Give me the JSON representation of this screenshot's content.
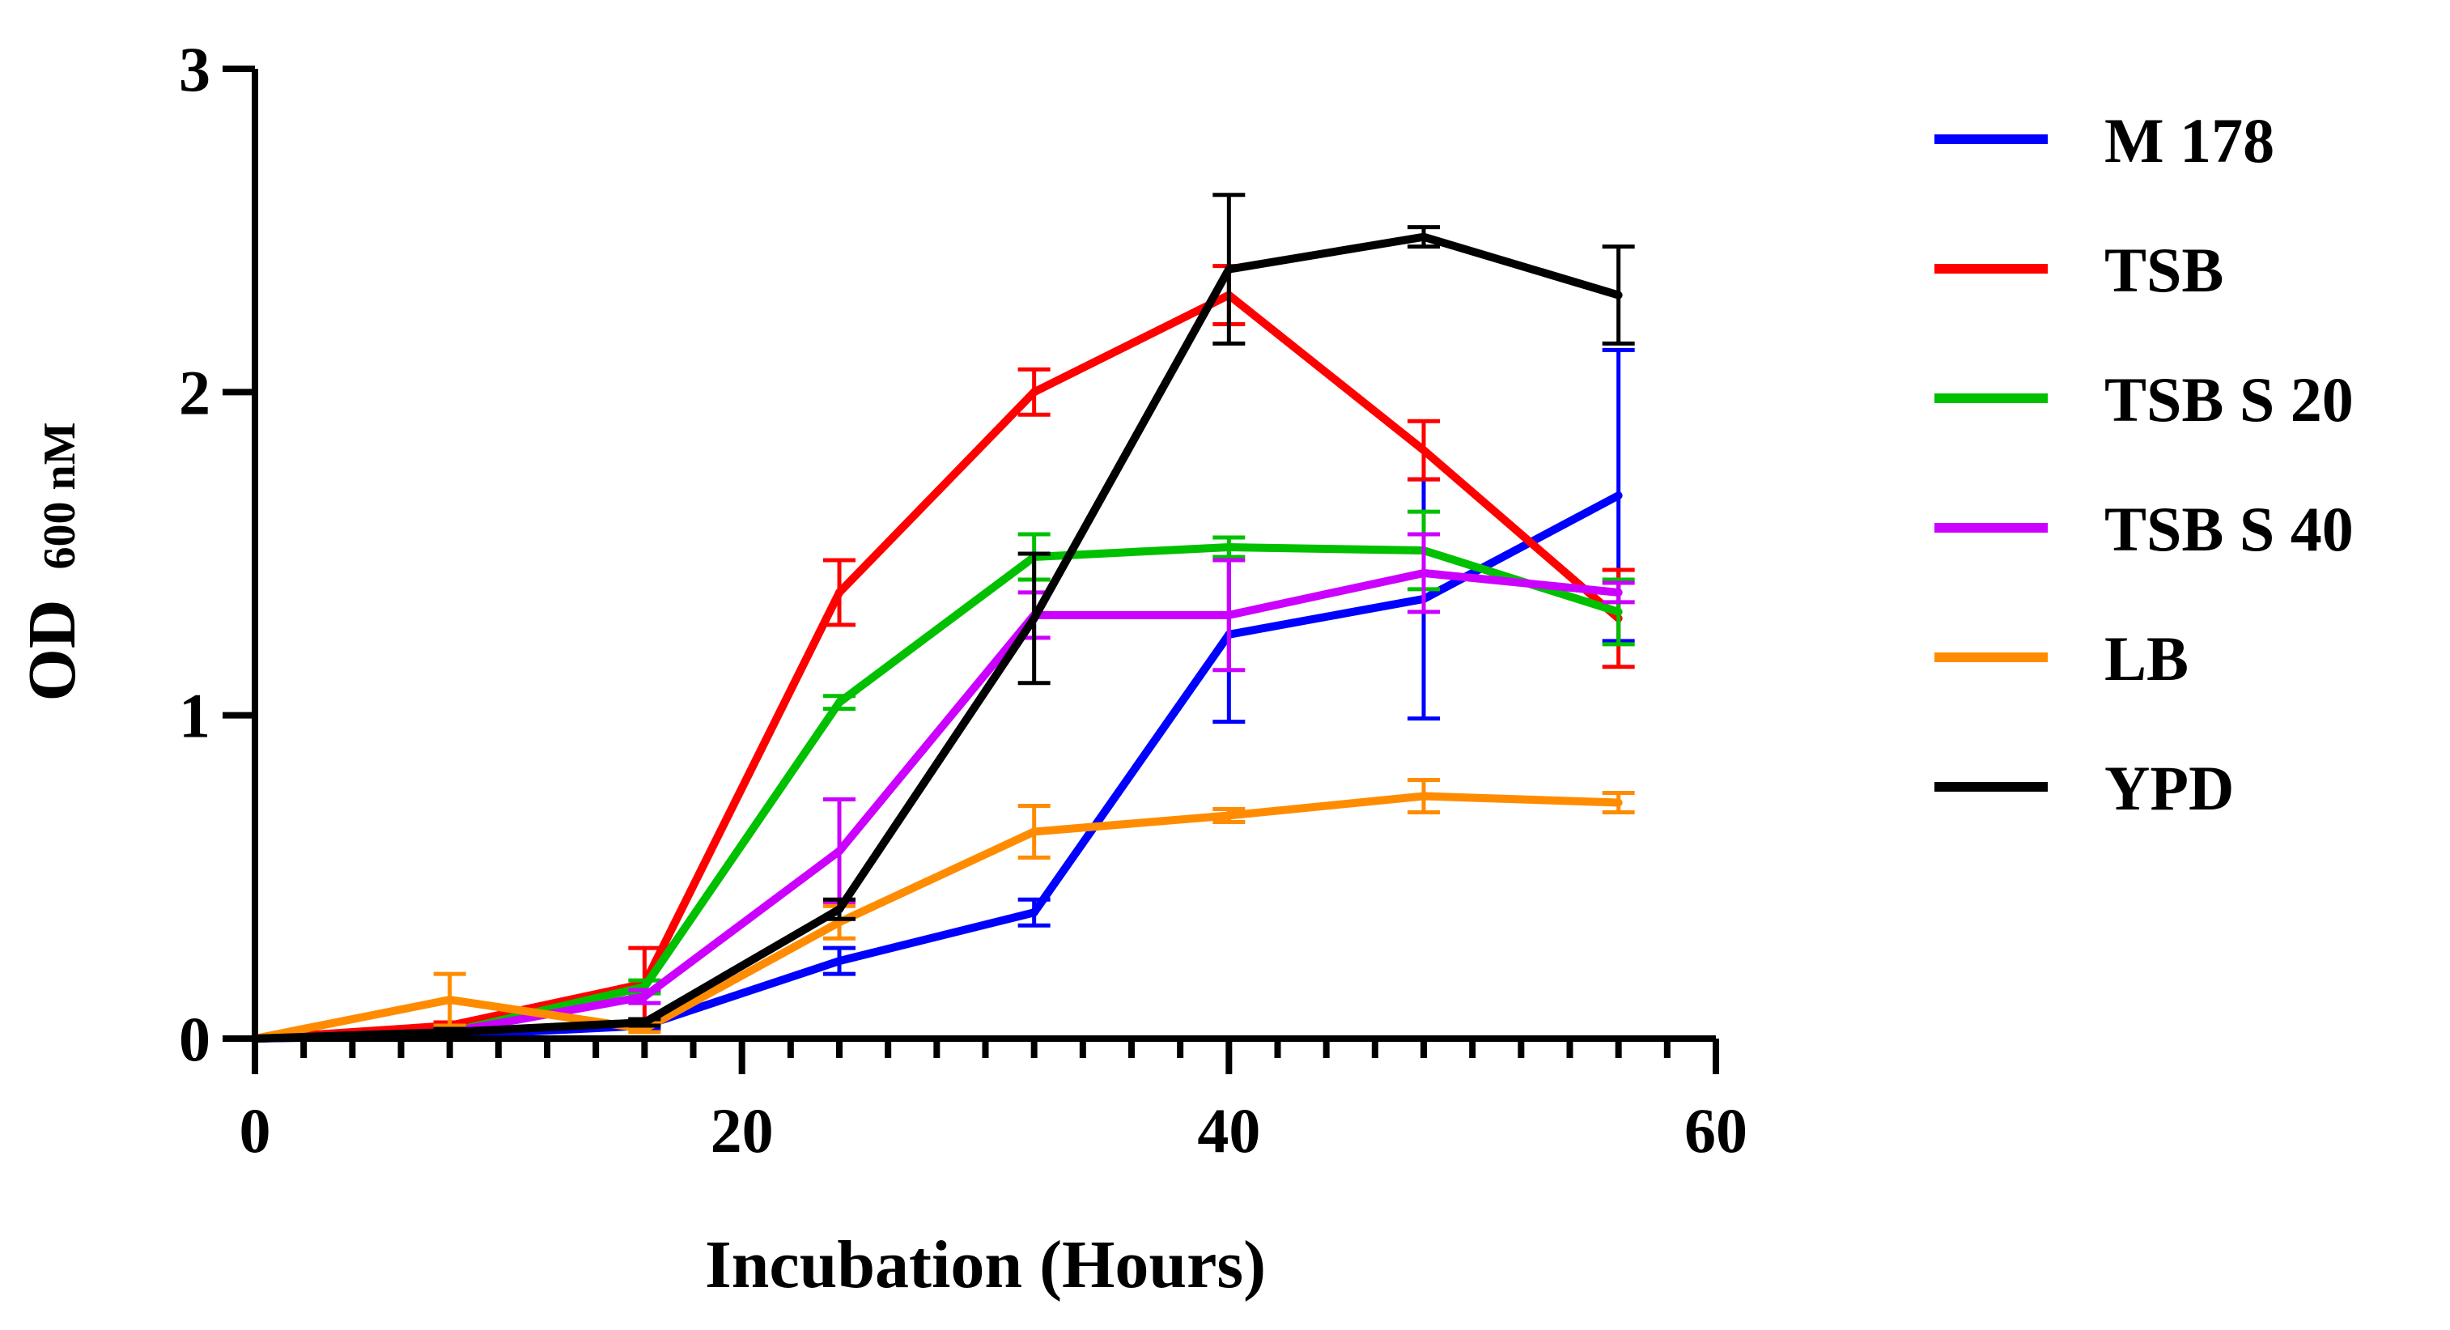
{
  "chart_data": {
    "type": "line",
    "xlabel": "Incubation (Hours)",
    "ylabel_main": "OD",
    "ylabel_sub": "600 nM",
    "xlim": [
      0,
      60
    ],
    "ylim": [
      0,
      3
    ],
    "x_ticks": [
      0,
      20,
      40,
      60
    ],
    "x_tick_labels": [
      "0",
      "20",
      "40",
      "60"
    ],
    "x_minor_step": 2,
    "y_ticks": [
      0,
      1,
      2,
      3
    ],
    "y_tick_labels": [
      "0",
      "1",
      "2",
      "3"
    ],
    "grid": false,
    "legend_position": "right",
    "series": [
      {
        "name": "M 178",
        "color": "#0000ff",
        "x": [
          0,
          8,
          16,
          24,
          32,
          40,
          48,
          56
        ],
        "y": [
          0,
          0.01,
          0.04,
          0.24,
          0.39,
          1.25,
          1.36,
          1.68
        ],
        "err": [
          0,
          0.01,
          0.01,
          0.04,
          0.04,
          0.27,
          0.37,
          0.45
        ]
      },
      {
        "name": "TSB",
        "color": "#ff0000",
        "x": [
          0,
          8,
          16,
          24,
          32,
          40,
          48,
          56
        ],
        "y": [
          0,
          0.04,
          0.17,
          1.38,
          2.0,
          2.3,
          1.82,
          1.3
        ],
        "err": [
          0,
          0.01,
          0.11,
          0.1,
          0.07,
          0.09,
          0.09,
          0.15
        ]
      },
      {
        "name": "TSB S 20",
        "color": "#00c000",
        "x": [
          0,
          8,
          16,
          24,
          32,
          40,
          48,
          56
        ],
        "y": [
          0,
          0.02,
          0.16,
          1.04,
          1.49,
          1.52,
          1.51,
          1.32
        ],
        "err": [
          0,
          0.01,
          0.02,
          0.02,
          0.07,
          0.03,
          0.12,
          0.1
        ]
      },
      {
        "name": "TSB S 40",
        "color": "#cc00ff",
        "x": [
          0,
          8,
          16,
          24,
          32,
          40,
          48,
          56
        ],
        "y": [
          0,
          0.02,
          0.13,
          0.58,
          1.31,
          1.31,
          1.44,
          1.38
        ],
        "err": [
          0,
          0.01,
          0.02,
          0.16,
          0.07,
          0.17,
          0.12,
          0.03
        ]
      },
      {
        "name": "LB",
        "color": "#ff8c00",
        "x": [
          0,
          8,
          16,
          24,
          32,
          40,
          48,
          56
        ],
        "y": [
          0,
          0.12,
          0.03,
          0.36,
          0.64,
          0.69,
          0.75,
          0.73
        ],
        "err": [
          0,
          0.08,
          0.01,
          0.05,
          0.08,
          0.02,
          0.05,
          0.03
        ]
      },
      {
        "name": "YPD",
        "color": "#000000",
        "x": [
          0,
          8,
          16,
          24,
          32,
          40,
          48,
          56
        ],
        "y": [
          0,
          0.02,
          0.05,
          0.4,
          1.3,
          2.38,
          2.48,
          2.3
        ],
        "err": [
          0,
          0.01,
          0.01,
          0.03,
          0.2,
          0.23,
          0.03,
          0.15
        ]
      }
    ]
  }
}
